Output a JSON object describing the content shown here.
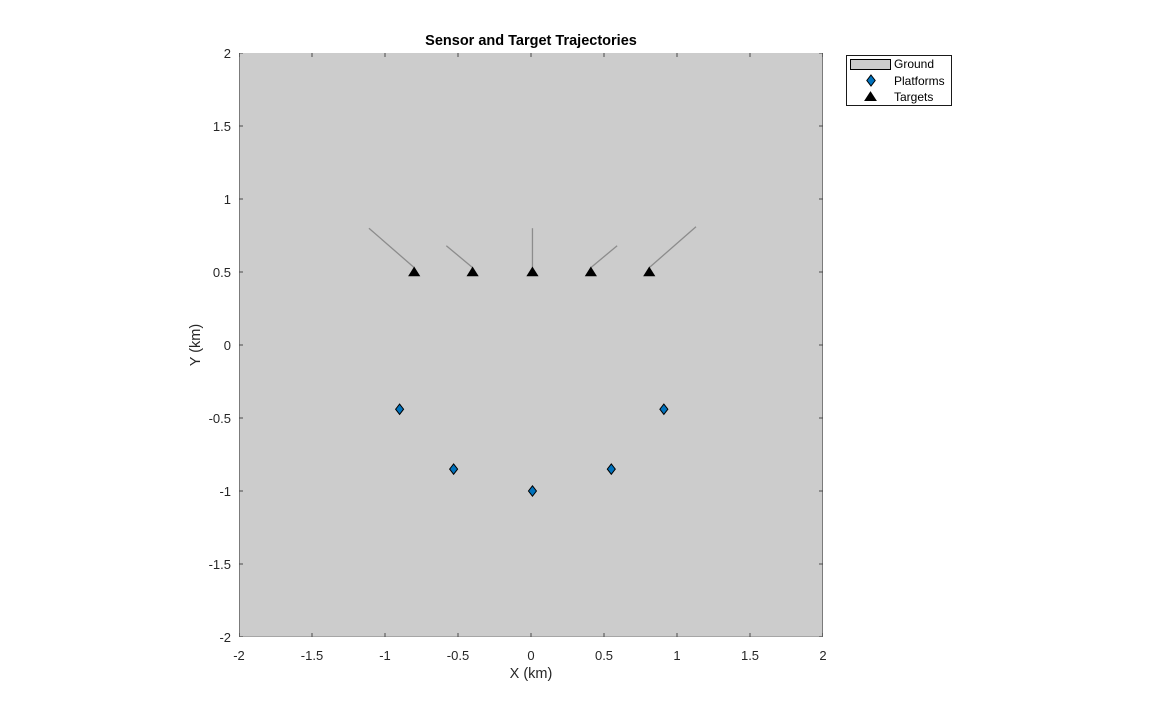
{
  "chart_data": {
    "type": "scatter",
    "title": "Sensor and Target Trajectories",
    "xlabel": "X (km)",
    "ylabel": "Y (km)",
    "xlim": [
      -2,
      2
    ],
    "ylim": [
      -2,
      2
    ],
    "xticks": [
      -2,
      -1.5,
      -1,
      -0.5,
      0,
      0.5,
      1,
      1.5,
      2
    ],
    "yticks": [
      -2,
      -1.5,
      -1,
      -0.5,
      0,
      0.5,
      1,
      1.5,
      2
    ],
    "grid": false,
    "plot_bg": "#cccccc",
    "axis_edge_color": "#7b7b7b",
    "bottom_edge_color": "#a6a6a6",
    "tick_mark_color": "#4a4a4a",
    "legend_position": "outside-northeast",
    "series": [
      {
        "name": "Ground",
        "type": "area",
        "color": "#cccccc",
        "note": "gray ground patch covering entire axes extent"
      },
      {
        "name": "Target trajectories",
        "type": "line",
        "color": "#8c8c8c",
        "width": 1.3,
        "segments": [
          [
            [
              -1.11,
              0.8
            ],
            [
              -0.8,
              0.53
            ]
          ],
          [
            [
              -0.58,
              0.68
            ],
            [
              -0.4,
              0.53
            ]
          ],
          [
            [
              0.01,
              0.8
            ],
            [
              0.01,
              0.53
            ]
          ],
          [
            [
              0.59,
              0.68
            ],
            [
              0.41,
              0.53
            ]
          ],
          [
            [
              1.13,
              0.81
            ],
            [
              0.81,
              0.53
            ]
          ]
        ]
      },
      {
        "name": "Platforms",
        "type": "scatter",
        "marker": "diamond",
        "fill": "#0072bd",
        "edge": "#000000",
        "points": [
          [
            -0.9,
            -0.44
          ],
          [
            -0.53,
            -0.85
          ],
          [
            0.01,
            -1.0
          ],
          [
            0.55,
            -0.85
          ],
          [
            0.91,
            -0.44
          ]
        ]
      },
      {
        "name": "Targets",
        "type": "scatter",
        "marker": "triangle",
        "fill": "#000000",
        "edge": "#000000",
        "points": [
          [
            -0.8,
            0.5
          ],
          [
            -0.4,
            0.5
          ],
          [
            0.01,
            0.5
          ],
          [
            0.41,
            0.5
          ],
          [
            0.81,
            0.5
          ]
        ]
      }
    ]
  },
  "legend": {
    "items": [
      {
        "label": "Ground",
        "swatch": "patch"
      },
      {
        "label": "Platforms",
        "swatch": "diamond"
      },
      {
        "label": "Targets",
        "swatch": "triangle"
      }
    ]
  }
}
